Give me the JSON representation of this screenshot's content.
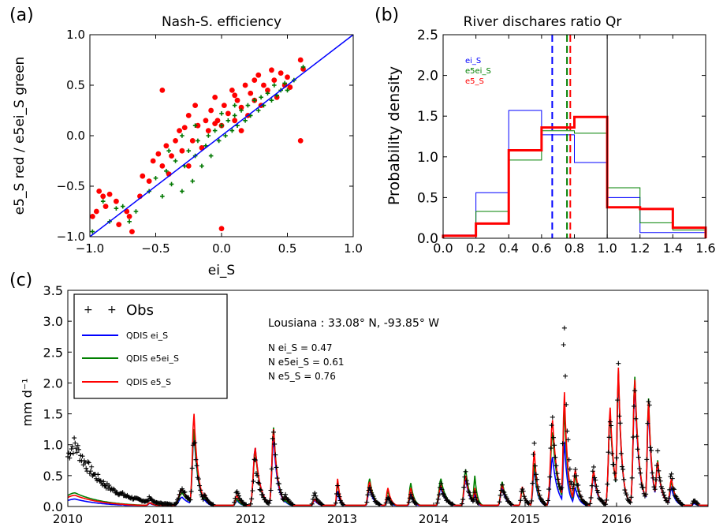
{
  "panels": {
    "a": {
      "label": "(a)"
    },
    "b": {
      "label": "(b)"
    },
    "c": {
      "label": "(c)"
    }
  },
  "chart_data": [
    {
      "id": "a",
      "type": "scatter",
      "title": "Nash-S. efficiency",
      "xlabel": "ei_S",
      "ylabel": "e5_S red / e5ei_S green",
      "xlim": [
        -1.0,
        1.0
      ],
      "ylim": [
        -1.0,
        1.0
      ],
      "xticks": [
        "-1.0",
        "-0.5",
        "0.0",
        "0.5",
        "1.0"
      ],
      "yticks": [
        "-1.0",
        "-0.5",
        "0.0",
        "0.5",
        "1.0"
      ],
      "identity_line_color": "#0000ff",
      "series": [
        {
          "color": "#ff0000",
          "marker": "circle",
          "points": [
            [
              -0.98,
              -0.8
            ],
            [
              -0.95,
              -0.75
            ],
            [
              -0.93,
              -0.55
            ],
            [
              -0.9,
              -0.6
            ],
            [
              -0.88,
              -0.7
            ],
            [
              -0.85,
              -0.58
            ],
            [
              -0.8,
              -0.65
            ],
            [
              -0.78,
              -0.88
            ],
            [
              -0.72,
              -0.75
            ],
            [
              -0.7,
              -0.8
            ],
            [
              -0.68,
              -0.95
            ],
            [
              -0.62,
              -0.6
            ],
            [
              -0.6,
              -0.4
            ],
            [
              -0.55,
              -0.45
            ],
            [
              -0.52,
              -0.25
            ],
            [
              -0.48,
              -0.18
            ],
            [
              -0.45,
              0.45
            ],
            [
              -0.45,
              -0.3
            ],
            [
              -0.42,
              -0.1
            ],
            [
              -0.4,
              -0.38
            ],
            [
              -0.38,
              -0.2
            ],
            [
              -0.35,
              -0.05
            ],
            [
              -0.32,
              0.05
            ],
            [
              -0.3,
              -0.15
            ],
            [
              -0.28,
              0.08
            ],
            [
              -0.25,
              0.2
            ],
            [
              -0.22,
              -0.05
            ],
            [
              -0.2,
              0.3
            ],
            [
              -0.18,
              0.1
            ],
            [
              -0.15,
              -0.12
            ],
            [
              -0.12,
              0.15
            ],
            [
              -0.1,
              0.05
            ],
            [
              -0.08,
              0.25
            ],
            [
              -0.05,
              0.38
            ],
            [
              -0.03,
              0.15
            ],
            [
              0.0,
              -0.92
            ],
            [
              0.0,
              0.1
            ],
            [
              0.02,
              0.3
            ],
            [
              0.05,
              0.22
            ],
            [
              0.08,
              0.45
            ],
            [
              0.1,
              0.15
            ],
            [
              0.12,
              0.35
            ],
            [
              0.15,
              0.28
            ],
            [
              0.18,
              0.5
            ],
            [
              0.2,
              0.2
            ],
            [
              0.22,
              0.42
            ],
            [
              0.25,
              0.35
            ],
            [
              0.28,
              0.6
            ],
            [
              0.3,
              0.3
            ],
            [
              0.32,
              0.5
            ],
            [
              0.35,
              0.45
            ],
            [
              0.38,
              0.65
            ],
            [
              0.4,
              0.55
            ],
            [
              0.42,
              0.38
            ],
            [
              0.45,
              0.62
            ],
            [
              0.48,
              0.5
            ],
            [
              0.5,
              0.58
            ],
            [
              0.52,
              0.48
            ],
            [
              0.6,
              0.75
            ],
            [
              0.6,
              -0.05
            ],
            [
              0.62,
              0.66
            ],
            [
              -0.05,
              0.12
            ],
            [
              0.1,
              0.4
            ],
            [
              0.25,
              0.55
            ],
            [
              -0.25,
              -0.3
            ],
            [
              0.15,
              0.05
            ]
          ]
        },
        {
          "color": "#007700",
          "marker": "plus",
          "points": [
            [
              -0.98,
              -0.95
            ],
            [
              -0.9,
              -0.65
            ],
            [
              -0.85,
              -0.85
            ],
            [
              -0.8,
              -0.72
            ],
            [
              -0.75,
              -0.7
            ],
            [
              -0.7,
              -0.85
            ],
            [
              -0.65,
              -0.75
            ],
            [
              -0.55,
              -0.55
            ],
            [
              -0.5,
              -0.42
            ],
            [
              -0.45,
              -0.6
            ],
            [
              -0.42,
              -0.35
            ],
            [
              -0.38,
              -0.48
            ],
            [
              -0.35,
              -0.25
            ],
            [
              -0.3,
              -0.55
            ],
            [
              -0.28,
              -0.3
            ],
            [
              -0.25,
              -0.15
            ],
            [
              -0.22,
              -0.45
            ],
            [
              -0.2,
              -0.2
            ],
            [
              -0.18,
              -0.05
            ],
            [
              -0.15,
              -0.3
            ],
            [
              -0.12,
              -0.1
            ],
            [
              -0.1,
              0.0
            ],
            [
              -0.08,
              -0.2
            ],
            [
              -0.05,
              0.05
            ],
            [
              -0.02,
              -0.05
            ],
            [
              0.0,
              0.1
            ],
            [
              0.03,
              0.0
            ],
            [
              0.05,
              0.15
            ],
            [
              0.08,
              0.05
            ],
            [
              0.1,
              0.2
            ],
            [
              0.12,
              0.1
            ],
            [
              0.15,
              0.25
            ],
            [
              0.18,
              0.15
            ],
            [
              0.2,
              0.3
            ],
            [
              0.22,
              0.2
            ],
            [
              0.25,
              0.35
            ],
            [
              0.28,
              0.25
            ],
            [
              0.3,
              0.38
            ],
            [
              0.32,
              0.3
            ],
            [
              0.35,
              0.42
            ],
            [
              0.38,
              0.35
            ],
            [
              0.4,
              0.5
            ],
            [
              0.42,
              0.4
            ],
            [
              0.45,
              0.45
            ],
            [
              0.48,
              0.52
            ],
            [
              0.5,
              0.45
            ],
            [
              0.55,
              0.55
            ],
            [
              0.62,
              0.68
            ],
            [
              -0.4,
              -0.15
            ],
            [
              -0.3,
              0.0
            ],
            [
              -0.2,
              0.1
            ],
            [
              0.0,
              0.22
            ],
            [
              0.1,
              0.3
            ]
          ]
        }
      ]
    },
    {
      "id": "b",
      "type": "histogram",
      "title": "River dischares ratio Qr",
      "xlabel": "",
      "ylabel": "Probability density",
      "xlim": [
        0.0,
        1.6
      ],
      "ylim": [
        0.0,
        2.5
      ],
      "xticks": [
        "0.0",
        "0.2",
        "0.4",
        "0.6",
        "0.8",
        "1.0",
        "1.2",
        "1.4",
        "1.6"
      ],
      "yticks": [
        "0.0",
        "0.5",
        "1.0",
        "1.5",
        "2.0",
        "2.5"
      ],
      "bin_edges": [
        0.0,
        0.2,
        0.4,
        0.6,
        0.8,
        1.0,
        1.2,
        1.4,
        1.6
      ],
      "series": [
        {
          "name": "ei_S",
          "color": "#0000ff",
          "width": 1,
          "values": [
            0.04,
            0.56,
            1.57,
            1.27,
            0.93,
            0.5,
            0.07,
            0.07
          ],
          "mean": 0.665
        },
        {
          "name": "e5ei_S",
          "color": "#008000",
          "width": 1,
          "values": [
            0.03,
            0.33,
            0.96,
            1.32,
            1.29,
            0.62,
            0.19,
            0.1
          ],
          "mean": 0.755
        },
        {
          "name": "e5_S",
          "color": "#ff0000",
          "width": 3,
          "values": [
            0.03,
            0.18,
            1.08,
            1.36,
            1.49,
            0.38,
            0.36,
            0.13
          ],
          "mean": 0.775
        }
      ],
      "reference_line": 1.0
    },
    {
      "id": "c",
      "type": "line",
      "title": "",
      "xlabel": "",
      "ylabel": "mm d⁻¹",
      "xlim": [
        2010.0,
        2017.0
      ],
      "ylim": [
        0.0,
        3.5
      ],
      "xticks": [
        "2010",
        "2011",
        "2012",
        "2013",
        "2014",
        "2015",
        "2016"
      ],
      "yticks": [
        "0.0",
        "0.5",
        "1.0",
        "1.5",
        "2.0",
        "2.5",
        "3.0",
        "3.5"
      ],
      "annotation": {
        "location": "Lousiana : 33.08° N, -93.85° W",
        "lines": [
          "N ei_S = 0.47",
          "N e5ei_S = 0.61",
          "N e5_S = 0.76"
        ]
      },
      "legend": {
        "obs": "Obs",
        "placement": "top-left"
      },
      "peaks": [
        [
          2010.08,
          1.0,
          0.12,
          0.22,
          0.18,
          0.35
        ],
        [
          2010.35,
          0.45,
          0.05,
          0.06,
          0.06,
          0.08
        ],
        [
          2010.6,
          0.2,
          0.03,
          0.04,
          0.04,
          0.05
        ],
        [
          2010.9,
          0.15,
          0.05,
          0.06,
          0.06,
          0.07
        ],
        [
          2011.25,
          0.3,
          0.15,
          0.22,
          0.28,
          0.1
        ],
        [
          2011.38,
          1.2,
          1.2,
          1.25,
          1.5,
          0.05
        ],
        [
          2011.5,
          0.2,
          0.1,
          0.15,
          0.2,
          0.05
        ],
        [
          2011.85,
          0.25,
          0.1,
          0.12,
          0.18,
          0.05
        ],
        [
          2012.05,
          0.75,
          0.95,
          0.9,
          0.95,
          0.06
        ],
        [
          2012.25,
          1.3,
          1.1,
          1.28,
          1.25,
          0.05
        ],
        [
          2012.38,
          0.2,
          0.08,
          0.1,
          0.15,
          0.05
        ],
        [
          2012.7,
          0.2,
          0.1,
          0.12,
          0.12,
          0.05
        ],
        [
          2012.95,
          0.3,
          0.25,
          0.4,
          0.45,
          0.03
        ],
        [
          2013.3,
          0.35,
          0.3,
          0.45,
          0.4,
          0.05
        ],
        [
          2013.5,
          0.15,
          0.15,
          0.25,
          0.3,
          0.04
        ],
        [
          2013.75,
          0.2,
          0.2,
          0.38,
          0.3,
          0.04
        ],
        [
          2014.08,
          0.35,
          0.3,
          0.45,
          0.35,
          0.06
        ],
        [
          2014.35,
          0.55,
          0.45,
          0.6,
          0.5,
          0.05
        ],
        [
          2014.45,
          0.2,
          0.2,
          0.5,
          0.3,
          0.03
        ],
        [
          2014.75,
          0.35,
          0.3,
          0.4,
          0.35,
          0.05
        ],
        [
          2014.97,
          0.3,
          0.3,
          0.28,
          0.32,
          0.04
        ],
        [
          2015.1,
          0.95,
          0.6,
          0.7,
          0.9,
          0.04
        ],
        [
          2015.3,
          1.5,
          0.8,
          1.2,
          1.4,
          0.06
        ],
        [
          2015.43,
          3.2,
          1.05,
          1.6,
          1.85,
          0.04
        ],
        [
          2015.55,
          0.6,
          0.3,
          0.5,
          0.6,
          0.05
        ],
        [
          2015.75,
          0.6,
          0.5,
          0.55,
          0.58,
          0.05
        ],
        [
          2015.93,
          1.5,
          1.5,
          1.5,
          1.6,
          0.05
        ],
        [
          2016.02,
          2.2,
          2.15,
          2.2,
          2.25,
          0.04
        ],
        [
          2016.2,
          2.0,
          1.95,
          2.1,
          2.05,
          0.05
        ],
        [
          2016.35,
          1.9,
          1.6,
          1.75,
          1.7,
          0.04
        ],
        [
          2016.45,
          0.8,
          0.7,
          0.75,
          0.72,
          0.05
        ],
        [
          2016.6,
          0.5,
          0.3,
          0.4,
          0.45,
          0.05
        ],
        [
          2016.85,
          0.1,
          0.05,
          0.08,
          0.08,
          0.05
        ]
      ],
      "series": [
        {
          "name": "Obs",
          "color": "#000000",
          "marker": "plus"
        },
        {
          "name": "QDIS ei_S",
          "color": "#0000ff"
        },
        {
          "name": "QDIS e5ei_S",
          "color": "#008000"
        },
        {
          "name": "QDIS e5_S",
          "color": "#ff0000"
        }
      ]
    }
  ]
}
